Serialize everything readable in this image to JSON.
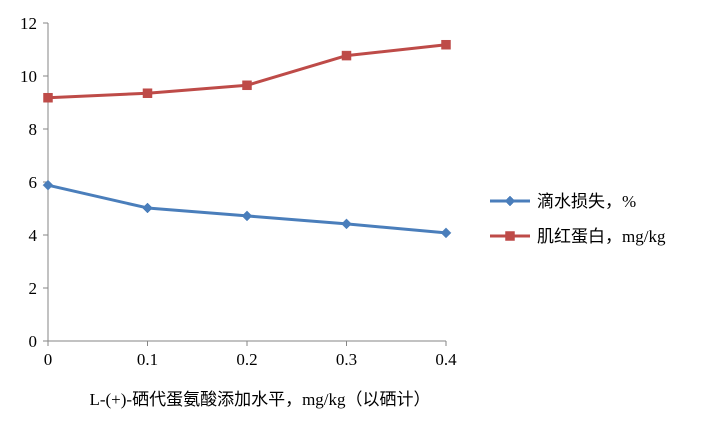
{
  "chart_data": {
    "type": "line",
    "title": "",
    "xlabel": "L-(+)-硒代蛋氨酸添加水平，mg/kg（以硒计）",
    "ylabel": "",
    "categories": [
      "0",
      "0.1",
      "0.2",
      "0.3",
      "0.4"
    ],
    "x": [
      0,
      0.1,
      0.2,
      0.3,
      0.4
    ],
    "xlim": [
      0,
      0.4
    ],
    "ylim": [
      0,
      12
    ],
    "yticks": [
      "0",
      "2",
      "4",
      "6",
      "8",
      "10",
      "12"
    ],
    "grid": false,
    "legend_position": "right",
    "series": [
      {
        "name": "滴水损失，%",
        "values": [
          5.88,
          5.02,
          4.72,
          4.42,
          4.08
        ],
        "color": "#4a7ebb",
        "marker": "diamond"
      },
      {
        "name": "肌红蛋白，mg/kg",
        "values": [
          9.18,
          9.35,
          9.65,
          10.77,
          11.18
        ],
        "color": "#be4b48",
        "marker": "square"
      }
    ]
  }
}
